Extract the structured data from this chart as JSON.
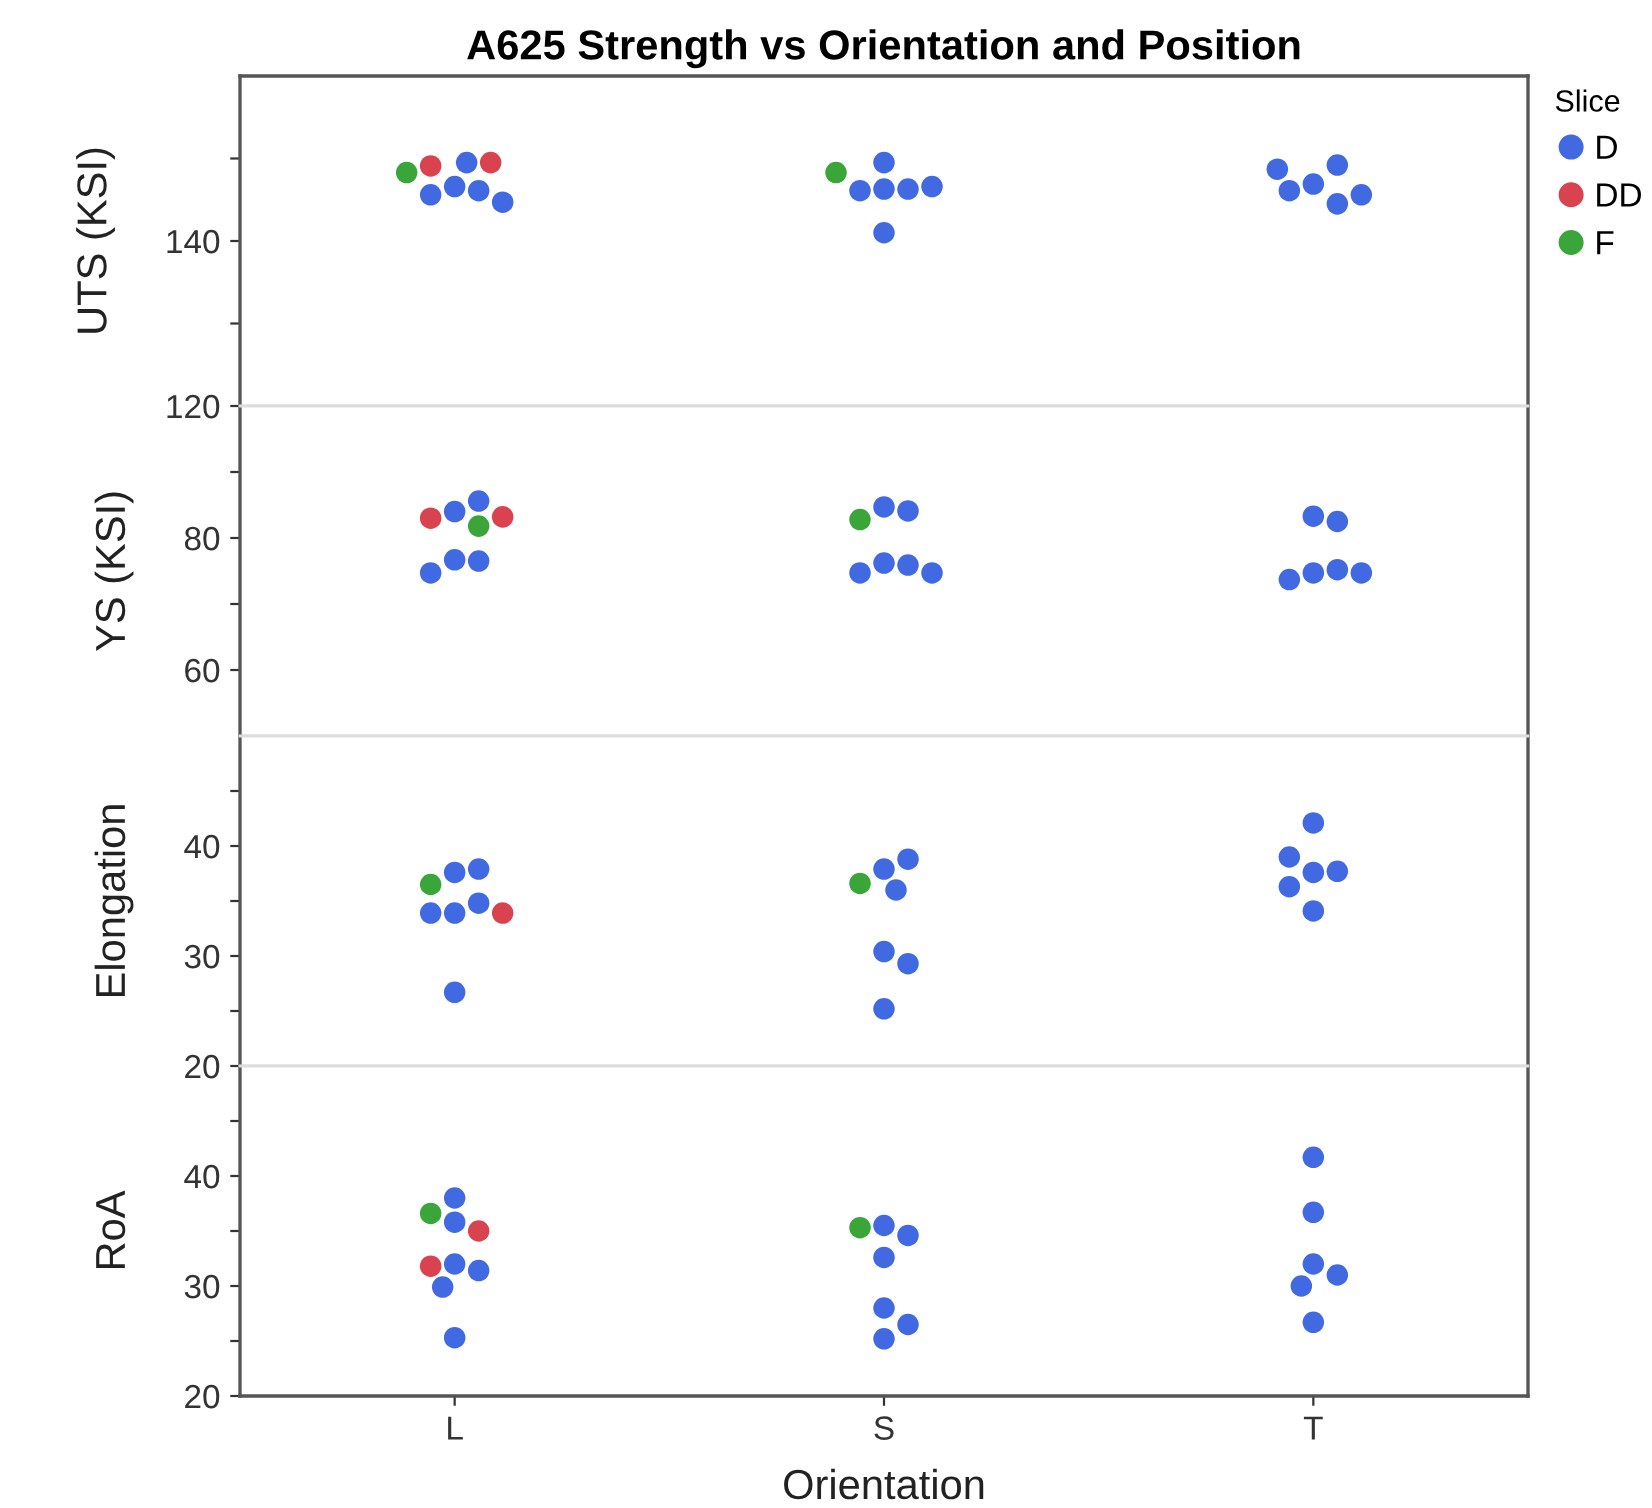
{
  "chart_data": [
    {
      "type": "scatter",
      "title": "A625 Strength vs Orientation and Position",
      "ylabel": "UTS (KSI)",
      "legend_title": "Slice",
      "legend": "right",
      "marker": "circle",
      "grid": false,
      "tick_labels": "y",
      "categories": [
        "L",
        "S",
        "T"
      ],
      "ylim": [
        120,
        160
      ],
      "yticks": [
        120,
        {
          "value": 130,
          "label": null
        },
        140,
        {
          "value": 150,
          "label": null
        }
      ],
      "series": [
        {
          "name": "D",
          "color": "#4169e1",
          "x": [
            "L",
            "L",
            "L",
            "L",
            "L",
            "S",
            "S",
            "S",
            "S",
            "S",
            "S",
            "T",
            "T",
            "T",
            "T",
            "T",
            "T"
          ],
          "values": [
            146.6,
            146.1,
            145.6,
            144.7,
            149.5,
            146.3,
            146.3,
            146.1,
            141.0,
            149.5,
            146.6,
            146.9,
            144.5,
            146.1,
            149.2,
            148.7,
            145.6
          ]
        },
        {
          "name": "DD",
          "color": "#d9434f",
          "x": [
            "L",
            "L"
          ],
          "values": [
            149.1,
            149.5
          ]
        },
        {
          "name": "F",
          "color": "#3aa63a",
          "x": [
            "L",
            "S"
          ],
          "values": [
            148.3,
            148.3
          ]
        }
      ]
    },
    {
      "type": "scatter",
      "ylabel": "YS (KSI)",
      "marker": "circle",
      "grid": false,
      "tick_labels": "y",
      "categories": [
        "L",
        "S",
        "T"
      ],
      "ylim": [
        50,
        100
      ],
      "yticks": [
        60,
        {
          "value": 70,
          "label": null
        },
        80,
        {
          "value": 90,
          "label": null
        }
      ],
      "series": [
        {
          "color": "#4169e1",
          "x": [
            "L",
            "L",
            "L",
            "L",
            "L",
            "S",
            "S",
            "S",
            "S",
            "S",
            "S",
            "T",
            "T",
            "T",
            "T",
            "T",
            "T"
          ],
          "values": [
            76.7,
            76.5,
            74.7,
            84.0,
            85.6,
            84.7,
            84.1,
            76.2,
            75.9,
            74.7,
            74.7,
            83.3,
            82.5,
            74.7,
            75.2,
            73.7,
            74.7
          ]
        },
        {
          "color": "#d9434f",
          "x": [
            "L",
            "L"
          ],
          "values": [
            83.0,
            83.2
          ]
        },
        {
          "color": "#3aa63a",
          "x": [
            "L",
            "S"
          ],
          "values": [
            81.8,
            82.8
          ]
        }
      ]
    },
    {
      "type": "scatter",
      "ylabel": "Elongation",
      "marker": "circle",
      "grid": false,
      "tick_labels": "y",
      "categories": [
        "L",
        "S",
        "T"
      ],
      "ylim": [
        20,
        50
      ],
      "yticks": [
        20,
        {
          "value": 25,
          "label": null
        },
        30,
        {
          "value": 35,
          "label": null
        },
        40,
        {
          "value": 45,
          "label": null
        }
      ],
      "series": [
        {
          "color": "#4169e1",
          "x": [
            "L",
            "L",
            "L",
            "L",
            "L",
            "L",
            "S",
            "S",
            "S",
            "S",
            "S",
            "S",
            "T",
            "T",
            "T",
            "T",
            "T",
            "T"
          ],
          "values": [
            37.6,
            37.9,
            33.9,
            34.8,
            33.9,
            26.7,
            37.9,
            38.8,
            36.0,
            30.4,
            29.3,
            25.2,
            42.1,
            37.6,
            37.7,
            39.0,
            36.3,
            34.1
          ]
        },
        {
          "color": "#d9434f",
          "x": [
            "L"
          ],
          "values": [
            33.9
          ]
        },
        {
          "color": "#3aa63a",
          "x": [
            "L",
            "S"
          ],
          "values": [
            36.5,
            36.6
          ]
        }
      ]
    },
    {
      "type": "scatter",
      "ylabel": "RoA",
      "xlabel": "Orientation",
      "marker": "circle",
      "grid": false,
      "categories": [
        "L",
        "S",
        "T"
      ],
      "ylim": [
        20,
        50
      ],
      "yticks": [
        20,
        {
          "value": 25,
          "label": null
        },
        30,
        {
          "value": 35,
          "label": null
        },
        40,
        {
          "value": 45,
          "label": null
        }
      ],
      "series": [
        {
          "color": "#4169e1",
          "x": [
            "L",
            "L",
            "L",
            "L",
            "L",
            "L",
            "S",
            "S",
            "S",
            "S",
            "S",
            "S",
            "T",
            "T",
            "T",
            "T",
            "T",
            "T"
          ],
          "values": [
            38.0,
            35.8,
            32.0,
            31.4,
            29.9,
            25.3,
            35.5,
            34.6,
            32.6,
            28.0,
            25.2,
            26.5,
            41.7,
            36.7,
            32.0,
            31.0,
            30.0,
            26.7
          ]
        },
        {
          "color": "#d9434f",
          "x": [
            "L",
            "L"
          ],
          "values": [
            35.0,
            31.8
          ]
        },
        {
          "color": "#3aa63a",
          "x": [
            "L",
            "S"
          ],
          "values": [
            36.6,
            35.3
          ]
        }
      ]
    }
  ]
}
